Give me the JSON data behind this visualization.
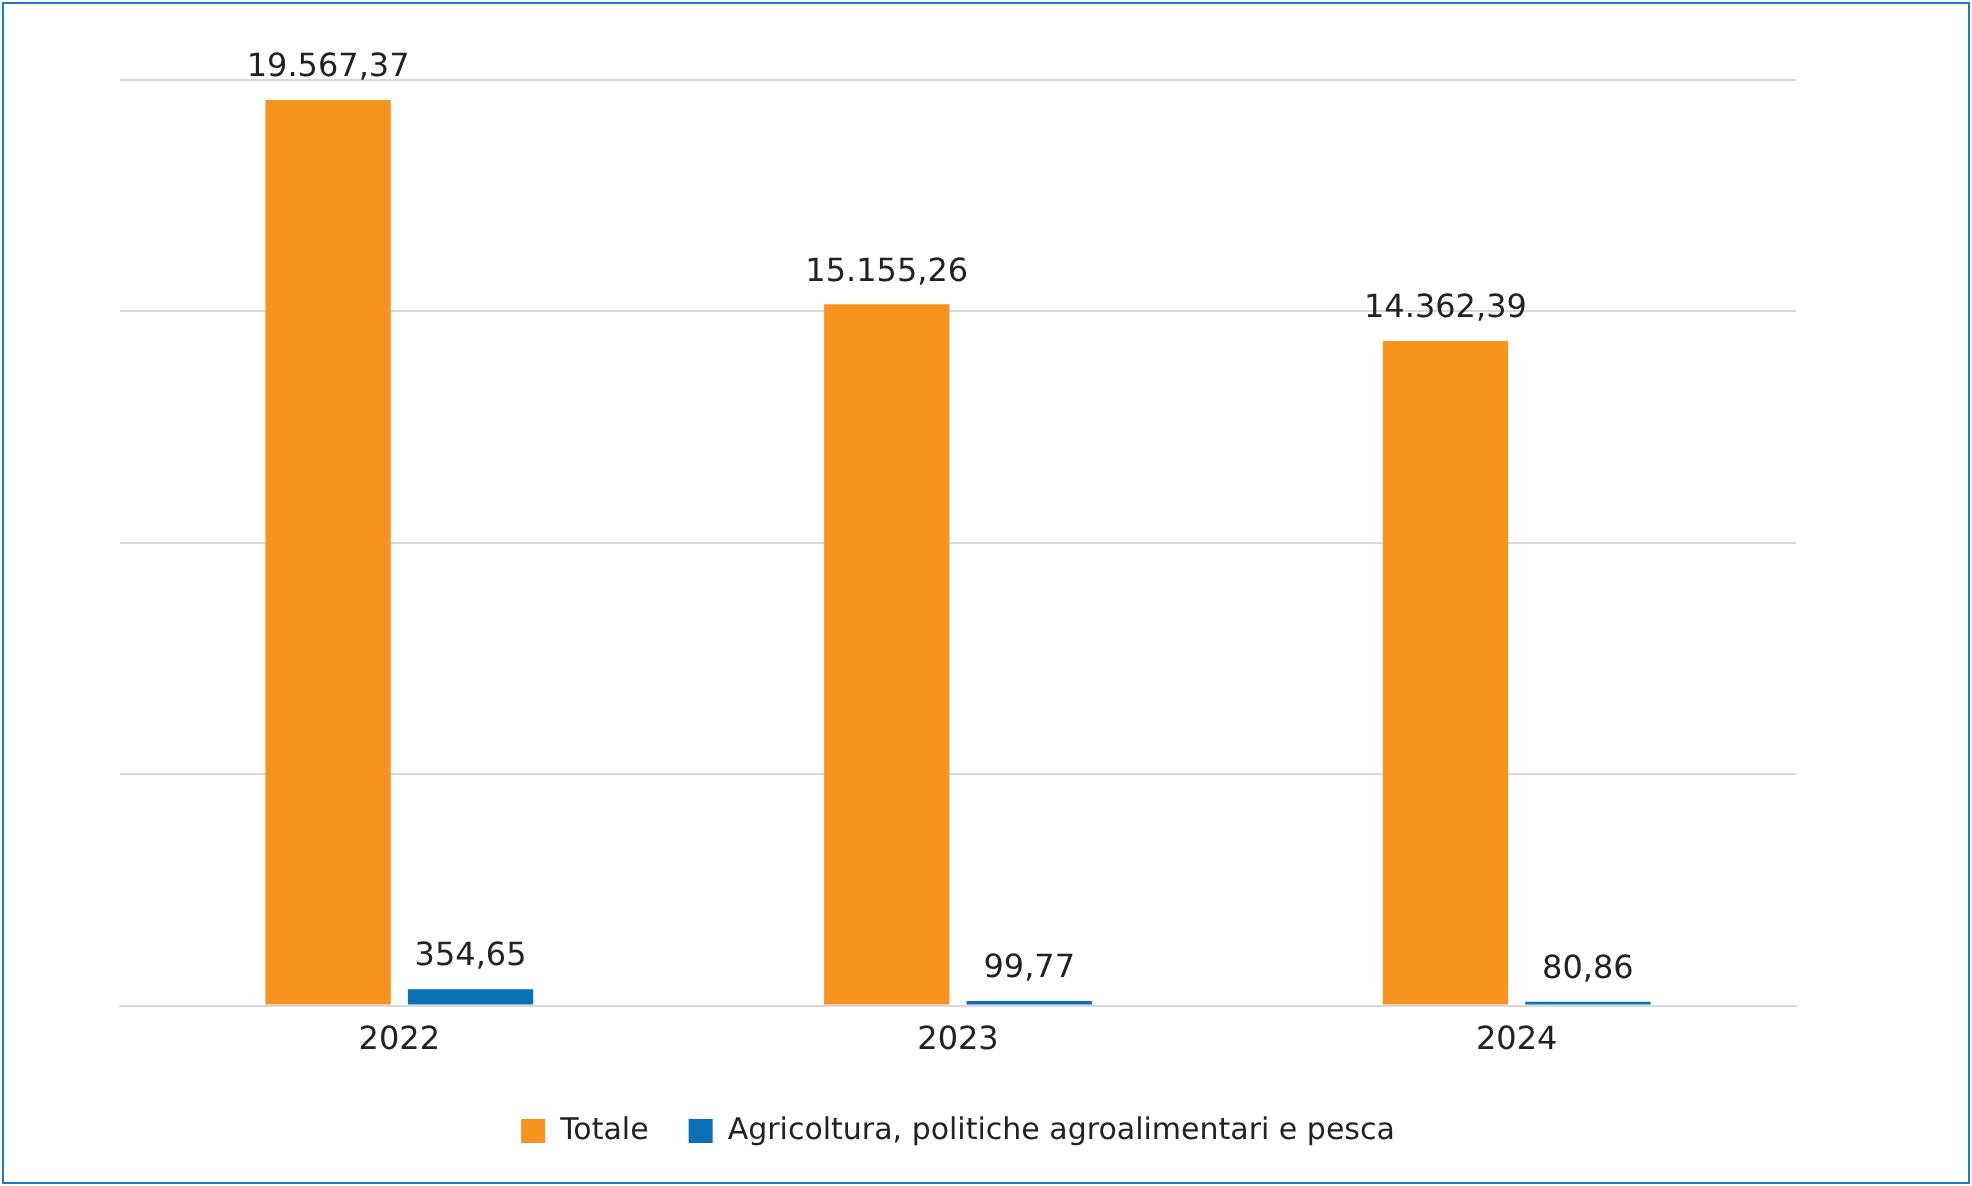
{
  "chart_data": {
    "type": "bar",
    "categories": [
      "2022",
      "2023",
      "2024"
    ],
    "series": [
      {
        "name": "Totale",
        "color": "#f7941d",
        "values": [
          19567.37,
          15155.26,
          14362.39
        ],
        "value_labels": [
          "19.567,37",
          "15.155,26",
          "14.362,39"
        ]
      },
      {
        "name": "Agricoltura, politiche agroalimentari e pesca",
        "color": "#0b6fb8",
        "values": [
          354.65,
          99.77,
          80.86
        ],
        "value_labels": [
          "354,65",
          "99,77",
          "80,86"
        ]
      }
    ],
    "ylim": [
      0,
      20000
    ],
    "yticks": [
      0,
      {
        "value": 5000,
        "label": null
      },
      {
        "value": 10000,
        "label": null
      },
      {
        "value": 15000,
        "label": null
      },
      {
        "value": 20000,
        "label": null
      }
    ],
    "tick_labels": "x",
    "grid": "y",
    "legend": "bottom"
  }
}
